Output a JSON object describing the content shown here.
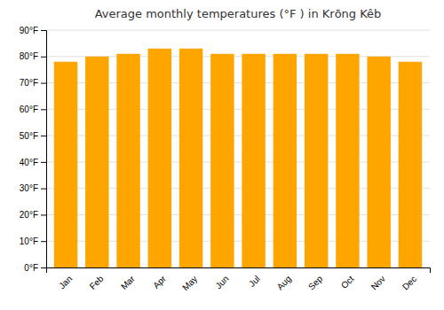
{
  "chart_data": {
    "type": "bar",
    "title": "Average monthly temperatures (°F ) in Krōng Kêb",
    "categories": [
      "Jan",
      "Feb",
      "Mar",
      "Apr",
      "May",
      "Jun",
      "Jul",
      "Aug",
      "Sep",
      "Oct",
      "Nov",
      "Dec"
    ],
    "values": [
      78,
      80,
      81,
      83,
      83,
      81,
      81,
      81,
      81,
      81,
      80,
      78
    ],
    "color": "#FFA500",
    "ylim": [
      0,
      90
    ],
    "yticks": [
      {
        "value": 0,
        "label": "0°F"
      },
      {
        "value": 10,
        "label": "10°F"
      },
      {
        "value": 20,
        "label": "20°F"
      },
      {
        "value": 30,
        "label": "30°F"
      },
      {
        "value": 40,
        "label": "40°F"
      },
      {
        "value": 50,
        "label": "50°F"
      },
      {
        "value": 60,
        "label": "60°F"
      },
      {
        "value": 70,
        "label": "70°F"
      },
      {
        "value": 80,
        "label": "80°F"
      },
      {
        "value": 90,
        "label": "90°F"
      }
    ],
    "grid": true
  }
}
